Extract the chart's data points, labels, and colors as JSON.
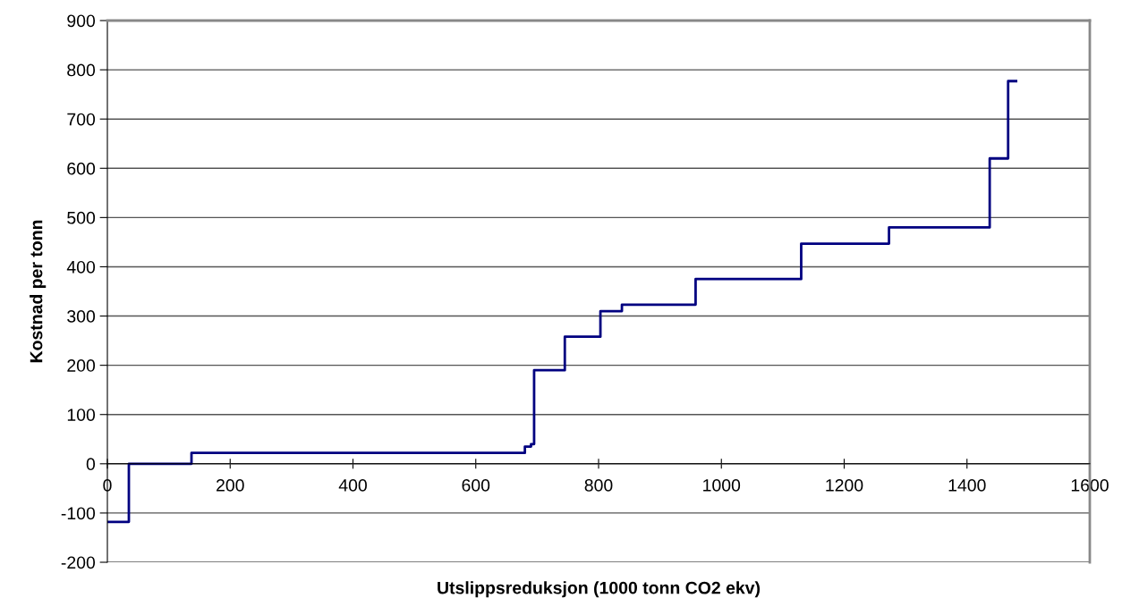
{
  "chart_data": {
    "type": "step",
    "xlabel": "Utslippsreduksjon (1000 tonn CO2 ekv)",
    "ylabel": "Kostnad per tonn",
    "series": [
      {
        "color": "#000080",
        "x": [
          0,
          35,
          137,
          680,
          690,
          695,
          745,
          803,
          838,
          958,
          1130,
          1273,
          1437,
          1467,
          1480
        ],
        "values": [
          -118,
          0,
          22,
          35,
          40,
          190,
          258,
          310,
          323,
          375,
          447,
          480,
          620,
          777,
          777
        ]
      }
    ],
    "xlim": [
      0,
      1600
    ],
    "xticks": [
      0,
      200,
      400,
      600,
      800,
      1000,
      1200,
      1400,
      1600
    ],
    "ylim": [
      -200,
      900
    ],
    "yticks": [
      -200,
      -100,
      0,
      100,
      200,
      300,
      400,
      500,
      600,
      700,
      800,
      900
    ],
    "grid": "y",
    "marker": "none",
    "line_style": "solid"
  }
}
